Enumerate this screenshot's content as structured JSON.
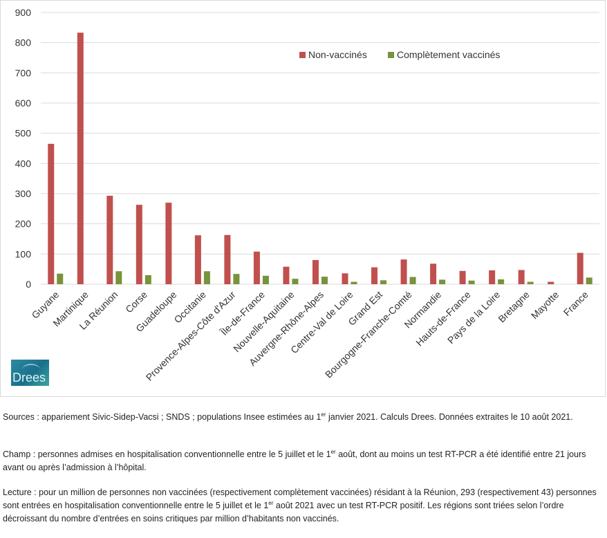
{
  "chart_data": {
    "type": "bar",
    "categories": [
      "Guyane",
      "Martinique",
      "La Réunion",
      "Corse",
      "Guadeloupe",
      "Occitanie",
      "Provence-Alpes-Côte d'Azur",
      "Île-de-France",
      "Nouvelle-Aquitaine",
      "Auvergne-Rhône-Alpes",
      "Centre-Val de Loire",
      "Grand Est",
      "Bourgogne-Franche-Comté",
      "Normandie",
      "Hauts-de-France",
      "Pays de la Loire",
      "Bretagne",
      "Mayotte",
      "France"
    ],
    "series": [
      {
        "name": "Non-vaccinés",
        "color": "#c0504d",
        "values": [
          465,
          833,
          293,
          263,
          270,
          162,
          163,
          108,
          58,
          80,
          36,
          56,
          82,
          68,
          44,
          46,
          47,
          8,
          104
        ]
      },
      {
        "name": "Complètement vaccinés",
        "color": "#77933c",
        "values": [
          35,
          0,
          43,
          30,
          0,
          43,
          34,
          28,
          18,
          25,
          8,
          13,
          24,
          15,
          12,
          16,
          8,
          0,
          22
        ]
      }
    ],
    "ylim": [
      0,
      900
    ],
    "yticks": [
      0,
      100,
      200,
      300,
      400,
      500,
      600,
      700,
      800,
      900
    ],
    "grid": true,
    "legend_position": "top-right",
    "xlabel": "",
    "ylabel": "",
    "title": ""
  },
  "logo": {
    "text": "Drees"
  },
  "notes": {
    "sources": {
      "pre": "Sources : appariement Sivic-Sidep-Vacsi ; SNDS ; populations Insee estimées au 1",
      "sup": "er",
      "post": " janvier 2021. Calculs Drees. Données extraites le 10 août 2021."
    },
    "champ": {
      "pre": "Champ : personnes admises en hospitalisation conventionnelle entre le 5 juillet et le 1",
      "sup": "er",
      "post": " août, dont au moins un test RT-PCR a été identifié entre 21 jours avant ou après l’admission à l’hôpital."
    },
    "lecture": {
      "pre": "Lecture : pour un million de personnes non vaccinées (respectivement complètement vaccinées) résidant à la Réunion, 293 (respectivement 43) personnes sont entrées en hospitalisation conventionnelle entre le 5 juillet et le 1",
      "sup": "er",
      "post": " août 2021 avec un test RT-PCR positif. Les régions sont triées selon l’ordre décroissant du nombre d’entrées en soins critiques par million d’habitants non vaccinés."
    }
  }
}
